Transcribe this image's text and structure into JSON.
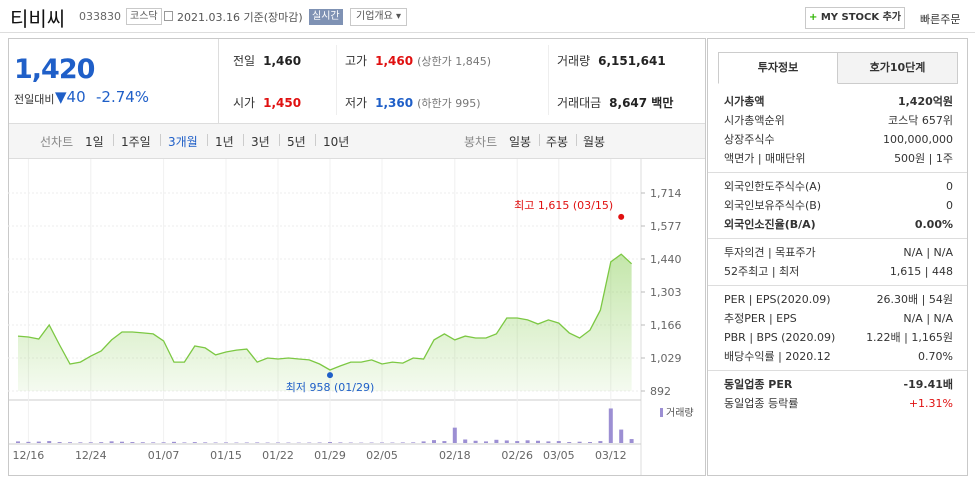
{
  "header": {
    "name": "티비씨",
    "code": "033830",
    "market": "코스닥",
    "date": "2021.03.16 기준(장마감)",
    "realtime": "실시간",
    "overview": "기업개요",
    "mystock": "MY STOCK 추가",
    "quick_order": "빠른주문"
  },
  "quote": {
    "price": "1,420",
    "change_label": "전일대비",
    "change": "40",
    "change_rate": "-2.74%",
    "color": "#1f5fc8"
  },
  "stats": [
    {
      "label": "전일",
      "value": "1,460"
    },
    {
      "label": "고가",
      "value": "1,460",
      "note": "(상한가 1,845)",
      "color": "#e01010"
    },
    {
      "label": "거래량",
      "value": "6,151,641"
    },
    {
      "label": "시가",
      "value": "1,450",
      "color": "#e01010"
    },
    {
      "label": "저가",
      "value": "1,360",
      "note": "(하한가 995)",
      "color": "#1f5fc8"
    },
    {
      "label": "거래대금",
      "value": "8,647 백만"
    }
  ],
  "line_tabs": {
    "label": "선차트",
    "items": [
      "1일",
      "1주일",
      "3개월",
      "1년",
      "3년",
      "5년",
      "10년"
    ],
    "active": "3개월"
  },
  "candle_tabs": {
    "label": "봉차트",
    "items": [
      "일봉",
      "주봉",
      "월봉"
    ]
  },
  "chart_data": {
    "type": "line",
    "categories": [
      null,
      "12/16",
      null,
      null,
      null,
      null,
      null,
      "12/24",
      null,
      null,
      null,
      null,
      null,
      null,
      "01/07",
      null,
      null,
      null,
      null,
      null,
      "01/15",
      null,
      null,
      null,
      null,
      "01/22",
      null,
      null,
      null,
      null,
      "01/29",
      null,
      null,
      null,
      null,
      "02/05",
      null,
      null,
      null,
      null,
      null,
      null,
      "02/18",
      null,
      null,
      null,
      null,
      null,
      "02/26",
      null,
      null,
      null,
      "03/05",
      null,
      null,
      null,
      null,
      "03/12",
      null,
      null
    ],
    "values": [
      1120,
      1116,
      1108,
      1166,
      1083,
      1004,
      1012,
      1037,
      1058,
      1104,
      1137,
      1137,
      1133,
      1129,
      1100,
      1012,
      1012,
      1079,
      1071,
      1042,
      1054,
      1062,
      1066,
      1012,
      1029,
      1025,
      1029,
      1025,
      1021,
      1004,
      979,
      996,
      1012,
      1012,
      1021,
      1004,
      1012,
      1008,
      1029,
      1025,
      1104,
      1129,
      1104,
      1120,
      1112,
      1112,
      1129,
      1195,
      1195,
      1187,
      1170,
      1187,
      1174,
      1133,
      1112,
      1145,
      1228,
      1428,
      1460,
      1420
    ],
    "color": "#7cc843",
    "ylim": [
      892,
      1714
    ],
    "yticks": [
      892,
      {
        "value": 1029,
        "label": "1,029"
      },
      {
        "value": 1166,
        "label": "1,166"
      },
      {
        "value": 1303,
        "label": "1,303"
      },
      {
        "value": 1440,
        "label": "1,440"
      },
      {
        "value": 1577,
        "label": "1,577"
      },
      {
        "value": 1714,
        "label": "1,714"
      }
    ],
    "grid": true,
    "high": {
      "text": "최고 1,615 (03/15)",
      "value": 1615,
      "color": "#e01010"
    },
    "low": {
      "text": "최저 958 (01/29)",
      "value": 958,
      "color": "#1f5fc8"
    },
    "volume_label": "거래량",
    "volume_color": "#9c8fd3",
    "volume": [
      2500000,
      1800000,
      2200000,
      3000000,
      1500000,
      1200000,
      1000000,
      1100000,
      1300000,
      2600000,
      2000000,
      1500000,
      1200000,
      1000000,
      1100000,
      1800000,
      900000,
      1400000,
      1000000,
      800000,
      900000,
      700000,
      800000,
      900000,
      700000,
      800000,
      700000,
      600000,
      700000,
      800000,
      1500000,
      900000,
      700000,
      600000,
      700000,
      800000,
      700000,
      900000,
      1000000,
      2500000,
      4500000,
      3000000,
      24000000,
      5500000,
      3500000,
      2500000,
      5000000,
      4000000,
      3000000,
      4200000,
      3500000,
      2500000,
      3000000,
      1500000,
      2000000,
      1500000,
      3000000,
      54000000,
      21000000,
      6151641
    ]
  },
  "info_tabs": [
    "투자정보",
    "호가10단계"
  ],
  "info": [
    [
      {
        "label": "시가총액",
        "value": "1,420억원",
        "bold": true
      },
      {
        "label": "시가총액순위",
        "value": "코스닥 657위"
      },
      {
        "label": "상장주식수",
        "value": "100,000,000"
      },
      {
        "label": "액면가 | 매매단위",
        "value": "500원 | 1주"
      }
    ],
    [
      {
        "label": "외국인한도주식수(A)",
        "value": "0"
      },
      {
        "label": "외국인보유주식수(B)",
        "value": "0"
      },
      {
        "label": "외국인소진율(B/A)",
        "value": "0.00%",
        "bold": true
      }
    ],
    [
      {
        "label": "투자의견 | 목표주가",
        "value": "N/A | N/A"
      },
      {
        "label": "52주최고 | 최저",
        "value": "1,615 | 448"
      }
    ],
    [
      {
        "label": "PER | EPS(2020.09)",
        "value": "26.30배 | 54원"
      },
      {
        "label": "추정PER | EPS",
        "value": "N/A | N/A"
      },
      {
        "label": "PBR | BPS (2020.09)",
        "value": "1.22배 | 1,165원"
      },
      {
        "label": "배당수익률 | 2020.12",
        "value": "0.70%"
      }
    ],
    [
      {
        "label": "동일업종 PER",
        "value": "-19.41배",
        "bold": true
      },
      {
        "label": "동일업종 등락률",
        "value": "+1.31%",
        "color": "#e01010"
      }
    ]
  ]
}
